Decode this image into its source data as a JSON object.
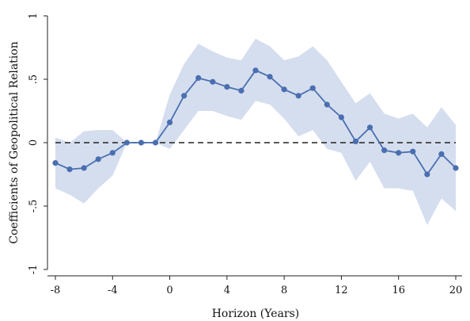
{
  "chart_data": {
    "type": "line",
    "title": "",
    "xlabel": "Horizon (Years)",
    "ylabel": "Coefficients of Geopolitical Relation",
    "xlim": [
      -8,
      20
    ],
    "ylim": [
      -1,
      1
    ],
    "x_ticks": [
      -8,
      -4,
      0,
      4,
      8,
      12,
      16,
      20
    ],
    "x_tick_labels": [
      "-8",
      "-4",
      "0",
      "4",
      "8",
      "12",
      "16",
      "20"
    ],
    "y_ticks": [
      -1,
      -0.5,
      0,
      0.5,
      1
    ],
    "y_tick_labels": [
      "-1",
      "-.5",
      "0",
      ".5",
      "1"
    ],
    "grid": false,
    "reference_line": {
      "y": 0,
      "style": "dashed",
      "color": "#222222"
    },
    "line_color": "#4a6fb0",
    "band_color": "#d5deee",
    "x": [
      -8,
      -7,
      -6,
      -5,
      -4,
      -3,
      -2,
      -1,
      0,
      1,
      2,
      3,
      4,
      5,
      6,
      7,
      8,
      9,
      10,
      11,
      12,
      13,
      14,
      15,
      16,
      17,
      18,
      19,
      20
    ],
    "series": [
      {
        "values": [
          -0.16,
          -0.21,
          -0.2,
          -0.13,
          -0.08,
          0.0,
          0.0,
          0.0,
          0.16,
          0.37,
          0.51,
          0.48,
          0.44,
          0.41,
          0.57,
          0.52,
          0.42,
          0.37,
          0.43,
          0.3,
          0.2,
          0.01,
          0.12,
          -0.06,
          -0.08,
          -0.07,
          -0.25,
          -0.09,
          -0.2
        ]
      }
    ],
    "ci_upper": [
      0.04,
      0.0,
      0.09,
      0.1,
      0.1,
      0.0,
      0.0,
      0.0,
      0.38,
      0.62,
      0.78,
      0.72,
      0.67,
      0.65,
      0.82,
      0.76,
      0.65,
      0.68,
      0.76,
      0.65,
      0.48,
      0.31,
      0.39,
      0.23,
      0.19,
      0.23,
      0.12,
      0.28,
      0.14
    ],
    "ci_lower": [
      -0.36,
      -0.41,
      -0.48,
      -0.36,
      -0.26,
      0.0,
      0.0,
      0.0,
      -0.05,
      0.1,
      0.25,
      0.25,
      0.21,
      0.18,
      0.33,
      0.3,
      0.19,
      0.05,
      0.1,
      -0.05,
      -0.08,
      -0.3,
      -0.15,
      -0.36,
      -0.36,
      -0.38,
      -0.65,
      -0.44,
      -0.54
    ]
  }
}
